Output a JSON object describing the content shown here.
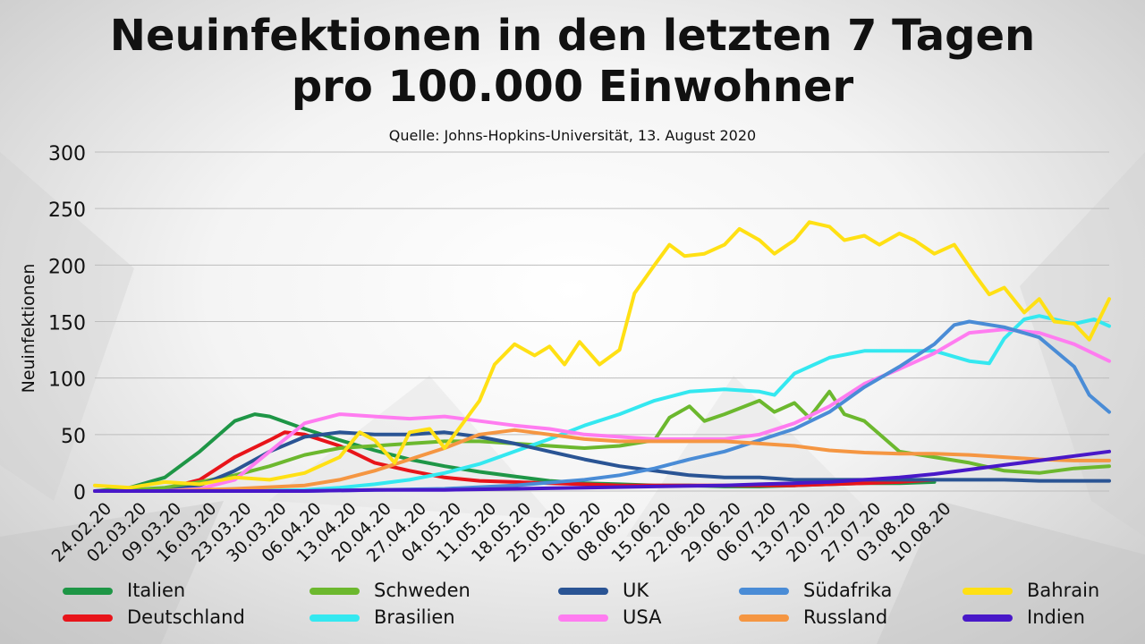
{
  "title_line1": "Neuinfektionen in den letzten 7 Tagen",
  "title_line2": "pro 100.000 Einwohner",
  "source": "Quelle: Johns-Hopkins-Universität, 13. August 2020",
  "chart_data": {
    "type": "line",
    "title": "Neuinfektionen in den letzten 7 Tagen pro 100.000 Einwohner",
    "ylabel": "Neuinfektionen",
    "xlabel": "",
    "ylim": [
      0,
      300
    ],
    "yticks": [
      0,
      50,
      100,
      150,
      200,
      250,
      300
    ],
    "x_tick_labels": [
      "24.02.20",
      "02.03.20",
      "09.03.20",
      "16.03.20",
      "23.03.20",
      "30.03.20",
      "06.04.20",
      "13.04.20",
      "20.04.20",
      "27.04.20",
      "04.05.20",
      "11.05.20",
      "18.05.20",
      "25.05.20",
      "01.06.20",
      "08.06.20",
      "15.06.20",
      "22.06.20",
      "29.06.20",
      "06.07.20",
      "13.07.20",
      "20.07.20",
      "27.07.20",
      "03.08.20",
      "10.08.20"
    ],
    "x_start": "24.02.20",
    "x_step_days": 7,
    "grid": "horizontal",
    "legend_position": "bottom",
    "series": [
      {
        "name": "Italien",
        "color": "#1e9646",
        "points": [
          [
            0,
            0
          ],
          [
            7,
            3
          ],
          [
            14,
            12
          ],
          [
            21,
            35
          ],
          [
            28,
            62
          ],
          [
            32,
            68
          ],
          [
            35,
            66
          ],
          [
            42,
            55
          ],
          [
            49,
            45
          ],
          [
            56,
            36
          ],
          [
            63,
            28
          ],
          [
            70,
            22
          ],
          [
            77,
            17
          ],
          [
            84,
            13
          ],
          [
            91,
            9
          ],
          [
            98,
            7
          ],
          [
            105,
            6
          ],
          [
            112,
            5
          ],
          [
            119,
            5
          ],
          [
            126,
            4
          ],
          [
            133,
            4
          ],
          [
            140,
            5
          ],
          [
            147,
            6
          ],
          [
            154,
            7
          ],
          [
            161,
            7
          ],
          [
            168,
            8
          ]
        ]
      },
      {
        "name": "Deutschland",
        "color": "#e8141a",
        "points": [
          [
            0,
            0
          ],
          [
            7,
            0
          ],
          [
            14,
            2
          ],
          [
            21,
            10
          ],
          [
            28,
            30
          ],
          [
            35,
            45
          ],
          [
            38,
            52
          ],
          [
            42,
            50
          ],
          [
            49,
            40
          ],
          [
            56,
            25
          ],
          [
            63,
            18
          ],
          [
            70,
            12
          ],
          [
            77,
            9
          ],
          [
            84,
            8
          ],
          [
            91,
            7
          ],
          [
            98,
            6
          ],
          [
            105,
            5
          ],
          [
            112,
            5
          ],
          [
            119,
            5
          ],
          [
            126,
            5
          ],
          [
            133,
            5
          ],
          [
            140,
            5
          ],
          [
            147,
            6
          ],
          [
            154,
            7
          ],
          [
            161,
            8
          ],
          [
            168,
            10
          ]
        ]
      },
      {
        "name": "Schweden",
        "color": "#6cb82e",
        "points": [
          [
            0,
            0
          ],
          [
            7,
            1
          ],
          [
            14,
            3
          ],
          [
            21,
            8
          ],
          [
            28,
            14
          ],
          [
            35,
            22
          ],
          [
            42,
            32
          ],
          [
            49,
            38
          ],
          [
            56,
            40
          ],
          [
            63,
            42
          ],
          [
            70,
            44
          ],
          [
            77,
            44
          ],
          [
            84,
            42
          ],
          [
            91,
            40
          ],
          [
            98,
            38
          ],
          [
            105,
            40
          ],
          [
            112,
            45
          ],
          [
            115,
            65
          ],
          [
            119,
            75
          ],
          [
            122,
            62
          ],
          [
            126,
            68
          ],
          [
            133,
            80
          ],
          [
            136,
            70
          ],
          [
            140,
            78
          ],
          [
            143,
            65
          ],
          [
            147,
            88
          ],
          [
            150,
            68
          ],
          [
            154,
            62
          ],
          [
            161,
            35
          ],
          [
            168,
            30
          ],
          [
            175,
            25
          ],
          [
            182,
            18
          ],
          [
            189,
            16
          ],
          [
            196,
            20
          ],
          [
            203,
            22
          ]
        ]
      },
      {
        "name": "Brasilien",
        "color": "#34e8f0",
        "points": [
          [
            0,
            0
          ],
          [
            14,
            0
          ],
          [
            28,
            0
          ],
          [
            42,
            1
          ],
          [
            49,
            3
          ],
          [
            56,
            6
          ],
          [
            63,
            10
          ],
          [
            70,
            16
          ],
          [
            77,
            24
          ],
          [
            84,
            35
          ],
          [
            91,
            46
          ],
          [
            98,
            58
          ],
          [
            105,
            68
          ],
          [
            112,
            80
          ],
          [
            119,
            88
          ],
          [
            126,
            90
          ],
          [
            133,
            88
          ],
          [
            136,
            85
          ],
          [
            140,
            104
          ],
          [
            147,
            118
          ],
          [
            154,
            124
          ],
          [
            161,
            124
          ],
          [
            168,
            124
          ],
          [
            175,
            115
          ],
          [
            179,
            113
          ],
          [
            182,
            135
          ],
          [
            186,
            152
          ],
          [
            189,
            155
          ],
          [
            196,
            148
          ],
          [
            200,
            152
          ],
          [
            203,
            146
          ]
        ]
      },
      {
        "name": "UK",
        "color": "#2a5494",
        "points": [
          [
            0,
            0
          ],
          [
            14,
            0
          ],
          [
            21,
            5
          ],
          [
            28,
            18
          ],
          [
            35,
            35
          ],
          [
            42,
            48
          ],
          [
            49,
            52
          ],
          [
            56,
            50
          ],
          [
            63,
            50
          ],
          [
            70,
            52
          ],
          [
            77,
            48
          ],
          [
            84,
            42
          ],
          [
            91,
            35
          ],
          [
            98,
            28
          ],
          [
            105,
            22
          ],
          [
            112,
            18
          ],
          [
            119,
            14
          ],
          [
            126,
            12
          ],
          [
            133,
            12
          ],
          [
            140,
            10
          ],
          [
            147,
            10
          ],
          [
            154,
            10
          ],
          [
            161,
            10
          ],
          [
            168,
            10
          ],
          [
            175,
            10
          ],
          [
            182,
            10
          ],
          [
            189,
            9
          ],
          [
            196,
            9
          ],
          [
            203,
            9
          ]
        ]
      },
      {
        "name": "USA",
        "color": "#ff7cf0",
        "points": [
          [
            0,
            0
          ],
          [
            14,
            0
          ],
          [
            21,
            2
          ],
          [
            28,
            10
          ],
          [
            35,
            35
          ],
          [
            42,
            60
          ],
          [
            49,
            68
          ],
          [
            56,
            66
          ],
          [
            63,
            64
          ],
          [
            70,
            66
          ],
          [
            77,
            62
          ],
          [
            84,
            58
          ],
          [
            91,
            55
          ],
          [
            98,
            50
          ],
          [
            105,
            48
          ],
          [
            112,
            46
          ],
          [
            119,
            46
          ],
          [
            126,
            46
          ],
          [
            133,
            50
          ],
          [
            140,
            60
          ],
          [
            147,
            75
          ],
          [
            154,
            95
          ],
          [
            161,
            108
          ],
          [
            168,
            122
          ],
          [
            175,
            140
          ],
          [
            182,
            143
          ],
          [
            189,
            140
          ],
          [
            196,
            130
          ],
          [
            203,
            115
          ]
        ]
      },
      {
        "name": "Südafrika",
        "color": "#4a8cd6",
        "points": [
          [
            0,
            0
          ],
          [
            14,
            0
          ],
          [
            28,
            0
          ],
          [
            42,
            0
          ],
          [
            56,
            1
          ],
          [
            70,
            2
          ],
          [
            84,
            5
          ],
          [
            98,
            10
          ],
          [
            105,
            14
          ],
          [
            112,
            20
          ],
          [
            119,
            28
          ],
          [
            126,
            35
          ],
          [
            133,
            45
          ],
          [
            140,
            55
          ],
          [
            147,
            70
          ],
          [
            154,
            92
          ],
          [
            161,
            110
          ],
          [
            168,
            130
          ],
          [
            172,
            147
          ],
          [
            175,
            150
          ],
          [
            182,
            145
          ],
          [
            189,
            136
          ],
          [
            196,
            110
          ],
          [
            199,
            85
          ],
          [
            203,
            70
          ]
        ]
      },
      {
        "name": "Russland",
        "color": "#f59642",
        "points": [
          [
            0,
            0
          ],
          [
            14,
            0
          ],
          [
            28,
            2
          ],
          [
            42,
            5
          ],
          [
            49,
            10
          ],
          [
            56,
            18
          ],
          [
            63,
            28
          ],
          [
            70,
            38
          ],
          [
            77,
            50
          ],
          [
            84,
            54
          ],
          [
            91,
            50
          ],
          [
            98,
            46
          ],
          [
            105,
            44
          ],
          [
            112,
            44
          ],
          [
            119,
            44
          ],
          [
            126,
            44
          ],
          [
            133,
            42
          ],
          [
            140,
            40
          ],
          [
            147,
            36
          ],
          [
            154,
            34
          ],
          [
            161,
            33
          ],
          [
            168,
            33
          ],
          [
            175,
            32
          ],
          [
            182,
            30
          ],
          [
            189,
            28
          ],
          [
            196,
            27
          ],
          [
            203,
            27
          ]
        ]
      },
      {
        "name": "Bahrain",
        "color": "#ffe014",
        "points": [
          [
            0,
            5
          ],
          [
            7,
            3
          ],
          [
            14,
            8
          ],
          [
            21,
            6
          ],
          [
            28,
            12
          ],
          [
            35,
            10
          ],
          [
            42,
            16
          ],
          [
            49,
            30
          ],
          [
            53,
            52
          ],
          [
            56,
            45
          ],
          [
            60,
            25
          ],
          [
            63,
            52
          ],
          [
            67,
            55
          ],
          [
            70,
            38
          ],
          [
            77,
            80
          ],
          [
            80,
            112
          ],
          [
            84,
            130
          ],
          [
            88,
            120
          ],
          [
            91,
            128
          ],
          [
            94,
            112
          ],
          [
            97,
            132
          ],
          [
            101,
            112
          ],
          [
            105,
            125
          ],
          [
            108,
            175
          ],
          [
            112,
            200
          ],
          [
            115,
            218
          ],
          [
            118,
            208
          ],
          [
            122,
            210
          ],
          [
            126,
            218
          ],
          [
            129,
            232
          ],
          [
            133,
            222
          ],
          [
            136,
            210
          ],
          [
            140,
            222
          ],
          [
            143,
            238
          ],
          [
            147,
            234
          ],
          [
            150,
            222
          ],
          [
            154,
            226
          ],
          [
            157,
            218
          ],
          [
            161,
            228
          ],
          [
            164,
            222
          ],
          [
            168,
            210
          ],
          [
            172,
            218
          ],
          [
            176,
            192
          ],
          [
            179,
            174
          ],
          [
            182,
            180
          ],
          [
            186,
            158
          ],
          [
            189,
            170
          ],
          [
            192,
            150
          ],
          [
            196,
            148
          ],
          [
            199,
            134
          ],
          [
            203,
            170
          ]
        ]
      },
      {
        "name": "Indien",
        "color": "#4818c8",
        "points": [
          [
            0,
            0
          ],
          [
            14,
            0
          ],
          [
            28,
            0
          ],
          [
            42,
            0
          ],
          [
            56,
            1
          ],
          [
            70,
            1
          ],
          [
            84,
            2
          ],
          [
            98,
            3
          ],
          [
            112,
            4
          ],
          [
            126,
            5
          ],
          [
            133,
            6
          ],
          [
            140,
            7
          ],
          [
            147,
            8
          ],
          [
            154,
            10
          ],
          [
            161,
            12
          ],
          [
            168,
            15
          ],
          [
            175,
            19
          ],
          [
            182,
            23
          ],
          [
            189,
            27
          ],
          [
            196,
            31
          ],
          [
            203,
            35
          ]
        ]
      }
    ]
  }
}
